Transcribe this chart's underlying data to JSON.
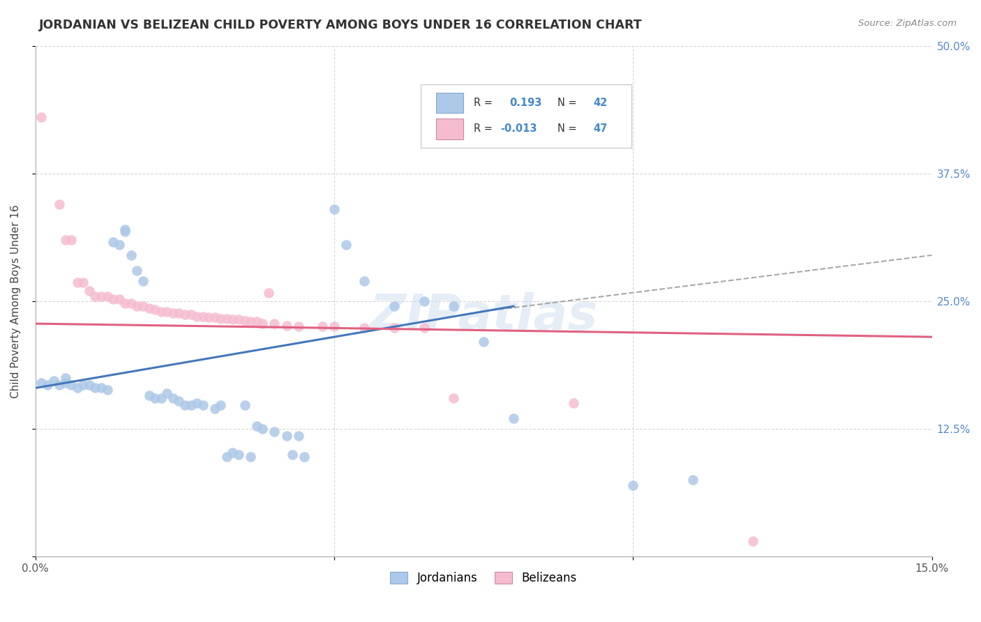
{
  "title": "JORDANIAN VS BELIZEAN CHILD POVERTY AMONG BOYS UNDER 16 CORRELATION CHART",
  "source": "Source: ZipAtlas.com",
  "ylabel": "Child Poverty Among Boys Under 16",
  "xlim": [
    0.0,
    0.15
  ],
  "ylim": [
    0.0,
    0.5
  ],
  "jordan_color": "#adc8e8",
  "belize_color": "#f5bcd0",
  "jordan_line_color": "#4477bb",
  "belize_line_color": "#e06080",
  "jordan_line": [
    [
      0.0,
      0.165
    ],
    [
      0.08,
      0.245
    ]
  ],
  "belize_line": [
    [
      0.0,
      0.228
    ],
    [
      0.15,
      0.215
    ]
  ],
  "dash_line": [
    [
      0.075,
      0.24
    ],
    [
      0.15,
      0.295
    ]
  ],
  "jordan_scatter": [
    [
      0.001,
      0.17
    ],
    [
      0.002,
      0.168
    ],
    [
      0.003,
      0.172
    ],
    [
      0.004,
      0.168
    ],
    [
      0.005,
      0.175
    ],
    [
      0.005,
      0.17
    ],
    [
      0.006,
      0.168
    ],
    [
      0.007,
      0.165
    ],
    [
      0.008,
      0.168
    ],
    [
      0.009,
      0.168
    ],
    [
      0.01,
      0.165
    ],
    [
      0.011,
      0.165
    ],
    [
      0.012,
      0.163
    ],
    [
      0.013,
      0.308
    ],
    [
      0.014,
      0.305
    ],
    [
      0.015,
      0.32
    ],
    [
      0.015,
      0.318
    ],
    [
      0.016,
      0.295
    ],
    [
      0.017,
      0.28
    ],
    [
      0.018,
      0.27
    ],
    [
      0.019,
      0.158
    ],
    [
      0.02,
      0.155
    ],
    [
      0.021,
      0.155
    ],
    [
      0.022,
      0.16
    ],
    [
      0.023,
      0.155
    ],
    [
      0.024,
      0.152
    ],
    [
      0.025,
      0.148
    ],
    [
      0.026,
      0.148
    ],
    [
      0.027,
      0.15
    ],
    [
      0.028,
      0.148
    ],
    [
      0.03,
      0.145
    ],
    [
      0.031,
      0.148
    ],
    [
      0.032,
      0.098
    ],
    [
      0.033,
      0.102
    ],
    [
      0.034,
      0.1
    ],
    [
      0.035,
      0.148
    ],
    [
      0.036,
      0.098
    ],
    [
      0.037,
      0.128
    ],
    [
      0.038,
      0.125
    ],
    [
      0.04,
      0.122
    ],
    [
      0.042,
      0.118
    ],
    [
      0.043,
      0.1
    ],
    [
      0.044,
      0.118
    ],
    [
      0.045,
      0.098
    ],
    [
      0.05,
      0.34
    ],
    [
      0.052,
      0.305
    ],
    [
      0.055,
      0.27
    ],
    [
      0.06,
      0.245
    ],
    [
      0.065,
      0.25
    ],
    [
      0.07,
      0.245
    ],
    [
      0.075,
      0.21
    ],
    [
      0.08,
      0.135
    ],
    [
      0.1,
      0.07
    ],
    [
      0.11,
      0.075
    ]
  ],
  "belize_scatter": [
    [
      0.001,
      0.43
    ],
    [
      0.004,
      0.345
    ],
    [
      0.005,
      0.31
    ],
    [
      0.006,
      0.31
    ],
    [
      0.007,
      0.268
    ],
    [
      0.008,
      0.268
    ],
    [
      0.009,
      0.26
    ],
    [
      0.01,
      0.255
    ],
    [
      0.011,
      0.255
    ],
    [
      0.012,
      0.255
    ],
    [
      0.013,
      0.252
    ],
    [
      0.014,
      0.252
    ],
    [
      0.015,
      0.248
    ],
    [
      0.016,
      0.248
    ],
    [
      0.017,
      0.245
    ],
    [
      0.018,
      0.245
    ],
    [
      0.019,
      0.243
    ],
    [
      0.02,
      0.242
    ],
    [
      0.021,
      0.24
    ],
    [
      0.022,
      0.24
    ],
    [
      0.023,
      0.238
    ],
    [
      0.024,
      0.238
    ],
    [
      0.025,
      0.237
    ],
    [
      0.026,
      0.237
    ],
    [
      0.027,
      0.235
    ],
    [
      0.028,
      0.235
    ],
    [
      0.029,
      0.234
    ],
    [
      0.03,
      0.234
    ],
    [
      0.031,
      0.233
    ],
    [
      0.032,
      0.233
    ],
    [
      0.033,
      0.232
    ],
    [
      0.034,
      0.232
    ],
    [
      0.035,
      0.231
    ],
    [
      0.036,
      0.23
    ],
    [
      0.037,
      0.23
    ],
    [
      0.038,
      0.228
    ],
    [
      0.039,
      0.258
    ],
    [
      0.04,
      0.228
    ],
    [
      0.042,
      0.226
    ],
    [
      0.044,
      0.225
    ],
    [
      0.048,
      0.225
    ],
    [
      0.05,
      0.225
    ],
    [
      0.055,
      0.224
    ],
    [
      0.06,
      0.224
    ],
    [
      0.065,
      0.224
    ],
    [
      0.07,
      0.155
    ],
    [
      0.09,
      0.15
    ],
    [
      0.12,
      0.015
    ]
  ],
  "background_color": "#ffffff",
  "watermark": "ZIPatlas",
  "grid_color": "#cccccc",
  "legend_R_jordan": "0.193",
  "legend_N_jordan": "42",
  "legend_R_belize": "-0.013",
  "legend_N_belize": "47"
}
